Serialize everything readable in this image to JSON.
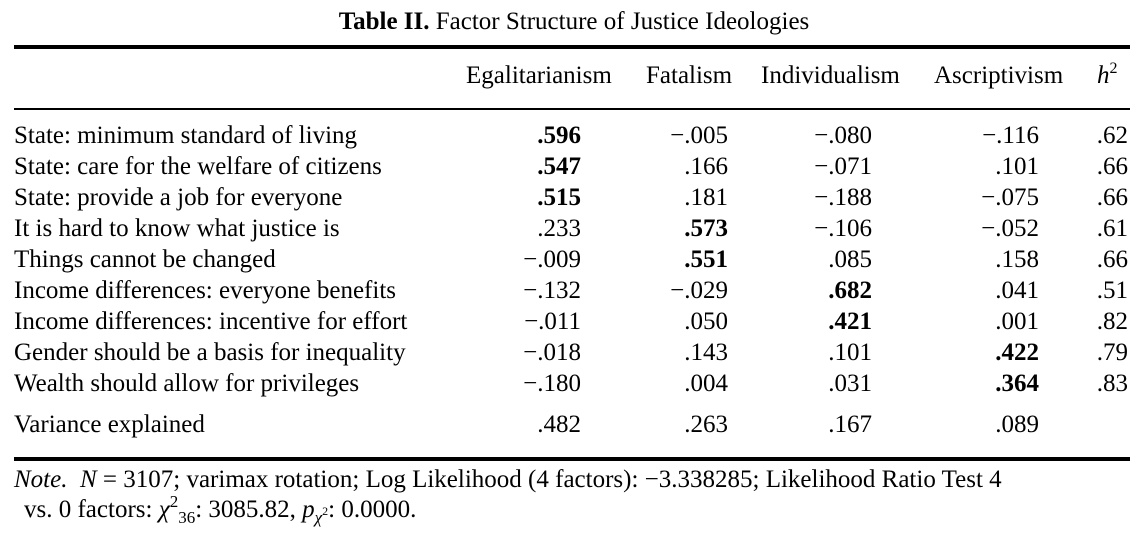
{
  "title": {
    "label": "Table II.",
    "text": "Factor Structure of Justice Ideologies"
  },
  "headers": {
    "col1": "Egalitarianism",
    "col2": "Fatalism",
    "col3": "Individualism",
    "col4": "Ascriptivism",
    "col5_base": "h",
    "col5_sup": "2"
  },
  "rows": [
    {
      "label": "State: minimum standard of living",
      "v": [
        ".596",
        "−.005",
        "−.080",
        "−.116",
        ".62"
      ],
      "bold": 0
    },
    {
      "label": "State: care for the welfare of citizens",
      "v": [
        ".547",
        ".166",
        "−.071",
        ".101",
        ".66"
      ],
      "bold": 0
    },
    {
      "label": "State: provide a job for everyone",
      "v": [
        ".515",
        ".181",
        "−.188",
        "−.075",
        ".66"
      ],
      "bold": 0
    },
    {
      "label": "It is hard to know what justice is",
      "v": [
        ".233",
        ".573",
        "−.106",
        "−.052",
        ".61"
      ],
      "bold": 1
    },
    {
      "label": "Things cannot be changed",
      "v": [
        "−.009",
        ".551",
        ".085",
        ".158",
        ".66"
      ],
      "bold": 1
    },
    {
      "label": "Income differences: everyone benefits",
      "v": [
        "−.132",
        "−.029",
        ".682",
        ".041",
        ".51"
      ],
      "bold": 2
    },
    {
      "label": "Income differences: incentive for effort",
      "v": [
        "−.011",
        ".050",
        ".421",
        ".001",
        ".82"
      ],
      "bold": 2
    },
    {
      "label": "Gender should be a basis for inequality",
      "v": [
        "−.018",
        ".143",
        ".101",
        ".422",
        ".79"
      ],
      "bold": 3
    },
    {
      "label": "Wealth should allow for privileges",
      "v": [
        "−.180",
        ".004",
        ".031",
        ".364",
        ".83"
      ],
      "bold": 3
    }
  ],
  "variance": {
    "label": "Variance explained",
    "v": [
      ".482",
      ".263",
      ".167",
      ".089"
    ]
  },
  "note": {
    "prefix": "Note.",
    "n_label": "N",
    "text1": " = 3107; varimax rotation; Log Likelihood (4 factors): −3.338285; Likelihood Ratio Test 4",
    "text2a": "vs. 0 factors: ",
    "chi": "χ",
    "chi_sup": "2",
    "chi_sub": "36",
    "text2b": ": 3085.82, ",
    "p": "p",
    "p_sub": "χ",
    "p_sub_sup": "2",
    "text2c": ": 0.0000."
  }
}
